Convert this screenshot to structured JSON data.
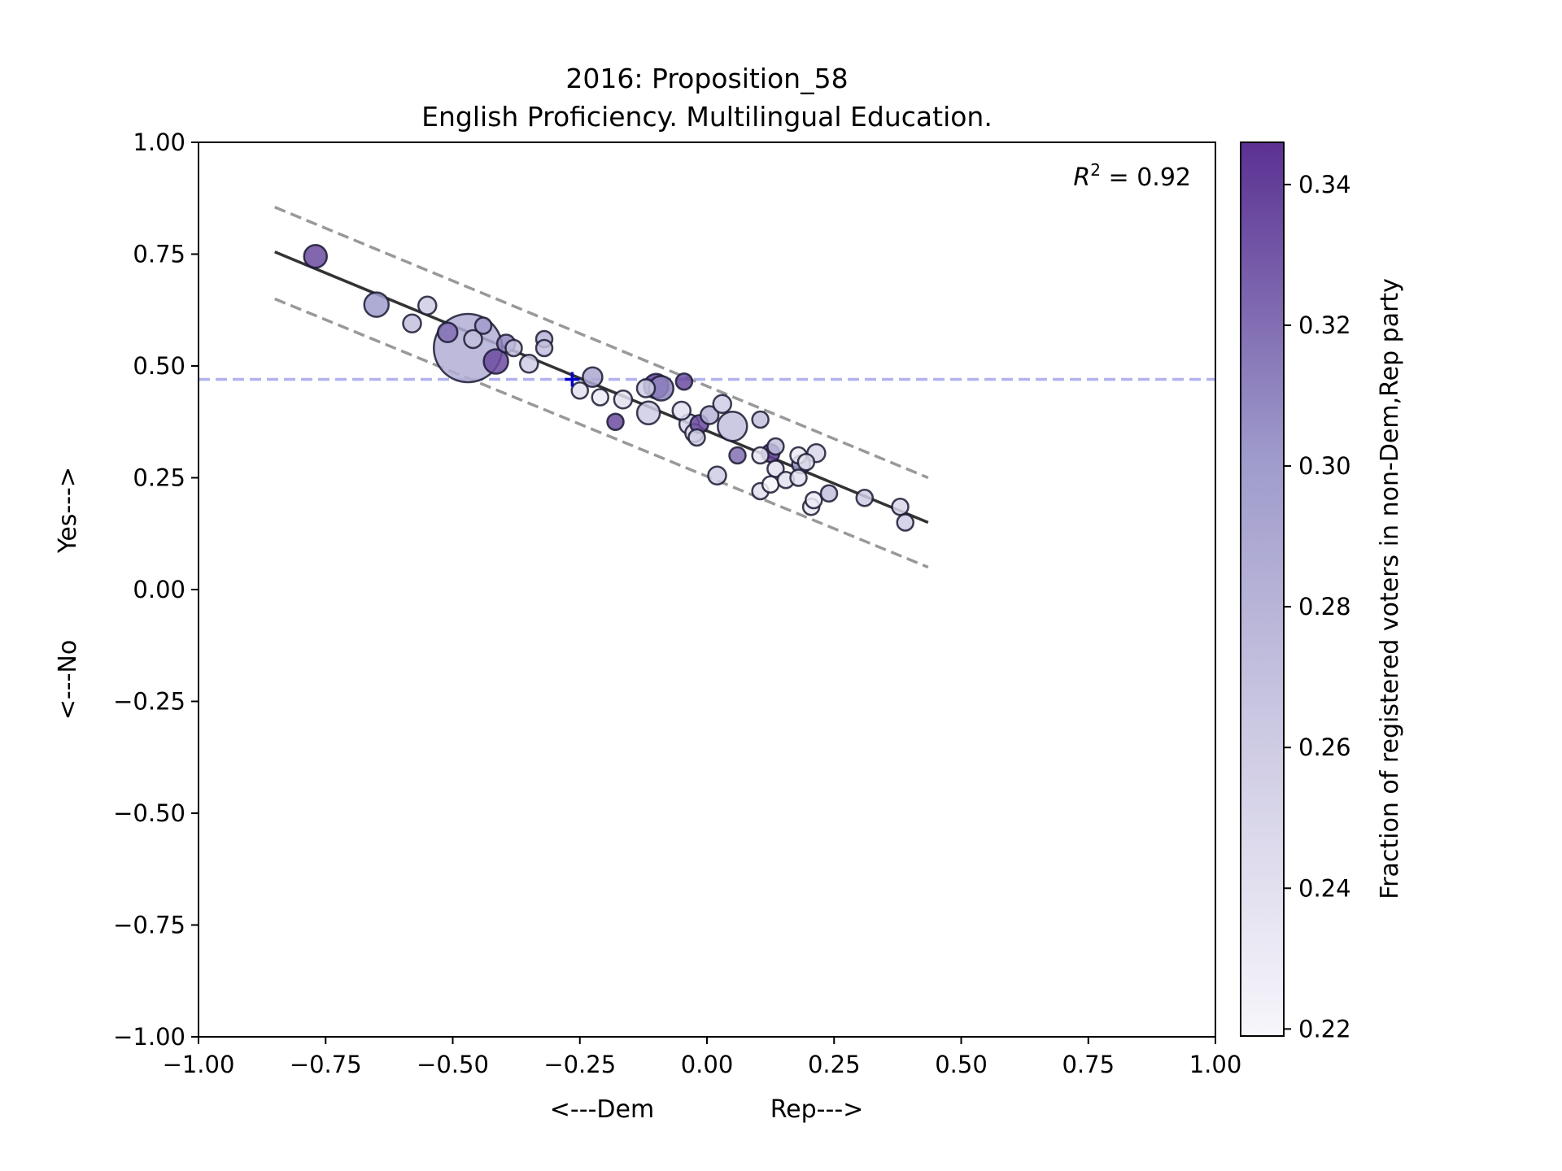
{
  "chart_data": {
    "type": "scatter",
    "title": "2016: Proposition_58",
    "subtitle": "English Proficiency. Multilingual Education.",
    "xlabel_left": "<---Dem",
    "xlabel_right": "Rep--->",
    "ylabel_bottom": "<---No",
    "ylabel_top": "Yes--->",
    "xlim": [
      -1.0,
      1.0
    ],
    "ylim": [
      -1.0,
      1.0
    ],
    "xticks": [
      "−1.00",
      "−0.75",
      "−0.50",
      "−0.25",
      "0.00",
      "0.25",
      "0.50",
      "0.75",
      "1.00"
    ],
    "yticks": [
      "−1.00",
      "−0.75",
      "−0.50",
      "−0.25",
      "0.00",
      "0.25",
      "0.50",
      "0.75",
      "1.00"
    ],
    "annotation_r2": "0.92",
    "reference_line_y": 0.47,
    "reference_marker": {
      "x": -0.265,
      "y": 0.47
    },
    "fit_line": {
      "x": [
        -0.85,
        0.435
      ],
      "y": [
        0.755,
        0.15
      ]
    },
    "band_upper": {
      "x": [
        -0.85,
        0.435
      ],
      "y": [
        0.855,
        0.25
      ]
    },
    "band_lower": {
      "x": [
        -0.85,
        0.435
      ],
      "y": [
        0.65,
        0.05
      ]
    },
    "colorbar": {
      "label": "Fraction of registered voters in non-Dem,Rep party",
      "range": [
        0.219,
        0.346
      ],
      "ticks": [
        "0.22",
        "0.24",
        "0.26",
        "0.28",
        "0.30",
        "0.32",
        "0.34"
      ],
      "color_low": "#f7f6fb",
      "color_high": "#5b3192"
    },
    "colors": {
      "reference": "#0000cc",
      "fit": "#333333",
      "band": "#999999",
      "edge": "#1a1a33"
    },
    "points": [
      {
        "x": -0.77,
        "y": 0.745,
        "s": 14,
        "c": 0.335
      },
      {
        "x": -0.65,
        "y": 0.637,
        "s": 15,
        "c": 0.3
      },
      {
        "x": -0.58,
        "y": 0.595,
        "s": 11,
        "c": 0.27
      },
      {
        "x": -0.55,
        "y": 0.635,
        "s": 11,
        "c": 0.26
      },
      {
        "x": -0.51,
        "y": 0.575,
        "s": 12,
        "c": 0.32
      },
      {
        "x": -0.47,
        "y": 0.54,
        "s": 42,
        "c": 0.285
      },
      {
        "x": -0.46,
        "y": 0.56,
        "s": 11,
        "c": 0.27
      },
      {
        "x": -0.44,
        "y": 0.59,
        "s": 10,
        "c": 0.3
      },
      {
        "x": -0.415,
        "y": 0.51,
        "s": 15,
        "c": 0.335
      },
      {
        "x": -0.395,
        "y": 0.55,
        "s": 11,
        "c": 0.31
      },
      {
        "x": -0.38,
        "y": 0.54,
        "s": 10,
        "c": 0.27
      },
      {
        "x": -0.35,
        "y": 0.505,
        "s": 11,
        "c": 0.26
      },
      {
        "x": -0.32,
        "y": 0.56,
        "s": 10,
        "c": 0.28
      },
      {
        "x": -0.32,
        "y": 0.54,
        "s": 10,
        "c": 0.27
      },
      {
        "x": -0.25,
        "y": 0.445,
        "s": 10,
        "c": 0.24
      },
      {
        "x": -0.225,
        "y": 0.475,
        "s": 12,
        "c": 0.29
      },
      {
        "x": -0.21,
        "y": 0.43,
        "s": 10,
        "c": 0.23
      },
      {
        "x": -0.165,
        "y": 0.425,
        "s": 11,
        "c": 0.24
      },
      {
        "x": -0.18,
        "y": 0.375,
        "s": 10,
        "c": 0.335
      },
      {
        "x": -0.12,
        "y": 0.45,
        "s": 11,
        "c": 0.26
      },
      {
        "x": -0.115,
        "y": 0.395,
        "s": 14,
        "c": 0.26
      },
      {
        "x": -0.1,
        "y": 0.455,
        "s": 15,
        "c": 0.34
      },
      {
        "x": -0.09,
        "y": 0.45,
        "s": 15,
        "c": 0.31
      },
      {
        "x": -0.045,
        "y": 0.465,
        "s": 10,
        "c": 0.335
      },
      {
        "x": -0.05,
        "y": 0.4,
        "s": 11,
        "c": 0.24
      },
      {
        "x": -0.035,
        "y": 0.37,
        "s": 12,
        "c": 0.25
      },
      {
        "x": -0.025,
        "y": 0.35,
        "s": 11,
        "c": 0.24
      },
      {
        "x": -0.02,
        "y": 0.34,
        "s": 10,
        "c": 0.26
      },
      {
        "x": -0.015,
        "y": 0.37,
        "s": 11,
        "c": 0.335
      },
      {
        "x": 0.005,
        "y": 0.39,
        "s": 11,
        "c": 0.28
      },
      {
        "x": 0.03,
        "y": 0.415,
        "s": 11,
        "c": 0.26
      },
      {
        "x": 0.05,
        "y": 0.365,
        "s": 18,
        "c": 0.27
      },
      {
        "x": 0.06,
        "y": 0.3,
        "s": 10,
        "c": 0.32
      },
      {
        "x": 0.02,
        "y": 0.255,
        "s": 11,
        "c": 0.26
      },
      {
        "x": 0.105,
        "y": 0.38,
        "s": 10,
        "c": 0.27
      },
      {
        "x": 0.105,
        "y": 0.3,
        "s": 10,
        "c": 0.235
      },
      {
        "x": 0.105,
        "y": 0.22,
        "s": 10,
        "c": 0.24
      },
      {
        "x": 0.125,
        "y": 0.305,
        "s": 11,
        "c": 0.34
      },
      {
        "x": 0.135,
        "y": 0.32,
        "s": 10,
        "c": 0.27
      },
      {
        "x": 0.135,
        "y": 0.27,
        "s": 10,
        "c": 0.24
      },
      {
        "x": 0.125,
        "y": 0.235,
        "s": 10,
        "c": 0.22
      },
      {
        "x": 0.155,
        "y": 0.245,
        "s": 10,
        "c": 0.24
      },
      {
        "x": 0.18,
        "y": 0.3,
        "s": 10,
        "c": 0.23
      },
      {
        "x": 0.185,
        "y": 0.28,
        "s": 11,
        "c": 0.3
      },
      {
        "x": 0.18,
        "y": 0.25,
        "s": 10,
        "c": 0.24
      },
      {
        "x": 0.195,
        "y": 0.285,
        "s": 10,
        "c": 0.24
      },
      {
        "x": 0.215,
        "y": 0.305,
        "s": 11,
        "c": 0.25
      },
      {
        "x": 0.205,
        "y": 0.185,
        "s": 10,
        "c": 0.23
      },
      {
        "x": 0.21,
        "y": 0.2,
        "s": 10,
        "c": 0.23
      },
      {
        "x": 0.24,
        "y": 0.215,
        "s": 10,
        "c": 0.27
      },
      {
        "x": 0.31,
        "y": 0.205,
        "s": 10,
        "c": 0.26
      },
      {
        "x": 0.38,
        "y": 0.185,
        "s": 10,
        "c": 0.25
      },
      {
        "x": 0.39,
        "y": 0.15,
        "s": 10,
        "c": 0.26
      }
    ]
  }
}
